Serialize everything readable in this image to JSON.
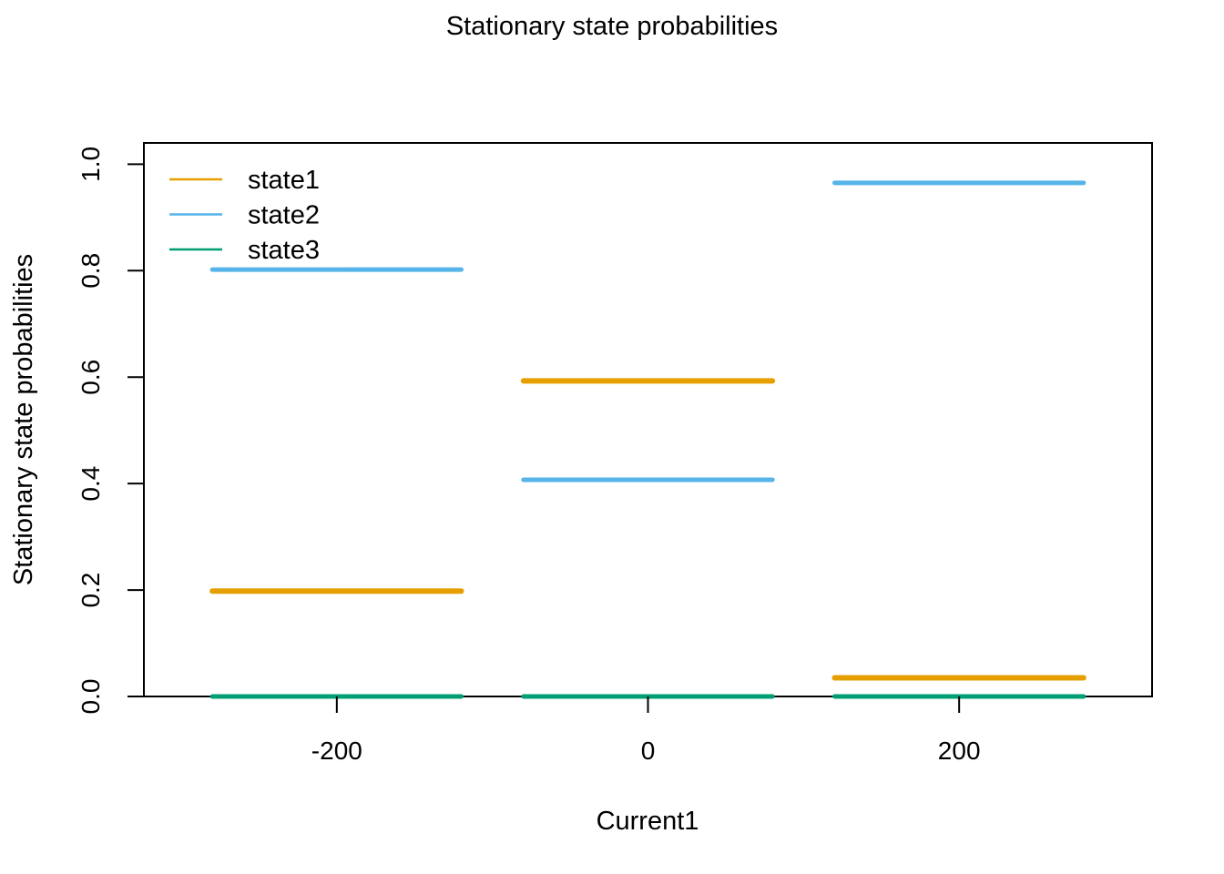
{
  "chart_data": {
    "type": "line",
    "title": "Stationary state probabilities",
    "xlabel": "Current1",
    "ylabel": "Stationary state probabilities",
    "x_ticks": [
      -200,
      0,
      200
    ],
    "y_ticks": [
      0.0,
      0.2,
      0.4,
      0.6,
      0.8,
      1.0
    ],
    "y_tick_labels": [
      "0.0",
      "0.2",
      "0.4",
      "0.6",
      "0.8",
      "1.0"
    ],
    "xlim": [
      -324,
      324
    ],
    "ylim": [
      0.0,
      1.04
    ],
    "segment_half_width": 80,
    "grid": false,
    "legend_position": "top-left",
    "series": [
      {
        "name": "state1",
        "color": "#E69F00",
        "points": [
          {
            "x": -200,
            "y": 0.198
          },
          {
            "x": 0,
            "y": 0.593
          },
          {
            "x": 200,
            "y": 0.035
          }
        ]
      },
      {
        "name": "state2",
        "color": "#56B4E9",
        "points": [
          {
            "x": -200,
            "y": 0.802
          },
          {
            "x": 0,
            "y": 0.407
          },
          {
            "x": 200,
            "y": 0.965
          }
        ]
      },
      {
        "name": "state3",
        "color": "#009E73",
        "points": [
          {
            "x": -200,
            "y": 0.0
          },
          {
            "x": 0,
            "y": 0.0
          },
          {
            "x": 200,
            "y": 0.0
          }
        ]
      }
    ]
  }
}
